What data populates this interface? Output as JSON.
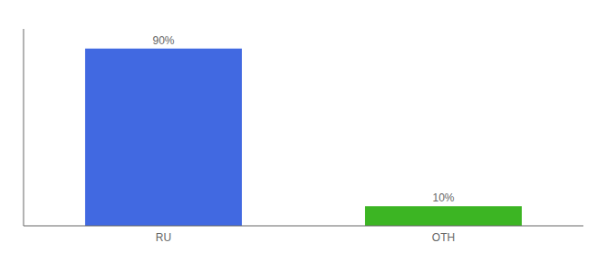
{
  "chart_data": {
    "type": "bar",
    "categories": [
      "RU",
      "OTH"
    ],
    "values": [
      90,
      10
    ],
    "value_labels": [
      "90%",
      "10%"
    ],
    "colors": [
      "#4169e1",
      "#3cb523"
    ],
    "data_labels": true,
    "ylim": [
      0,
      100
    ],
    "tick_labels": "x"
  }
}
